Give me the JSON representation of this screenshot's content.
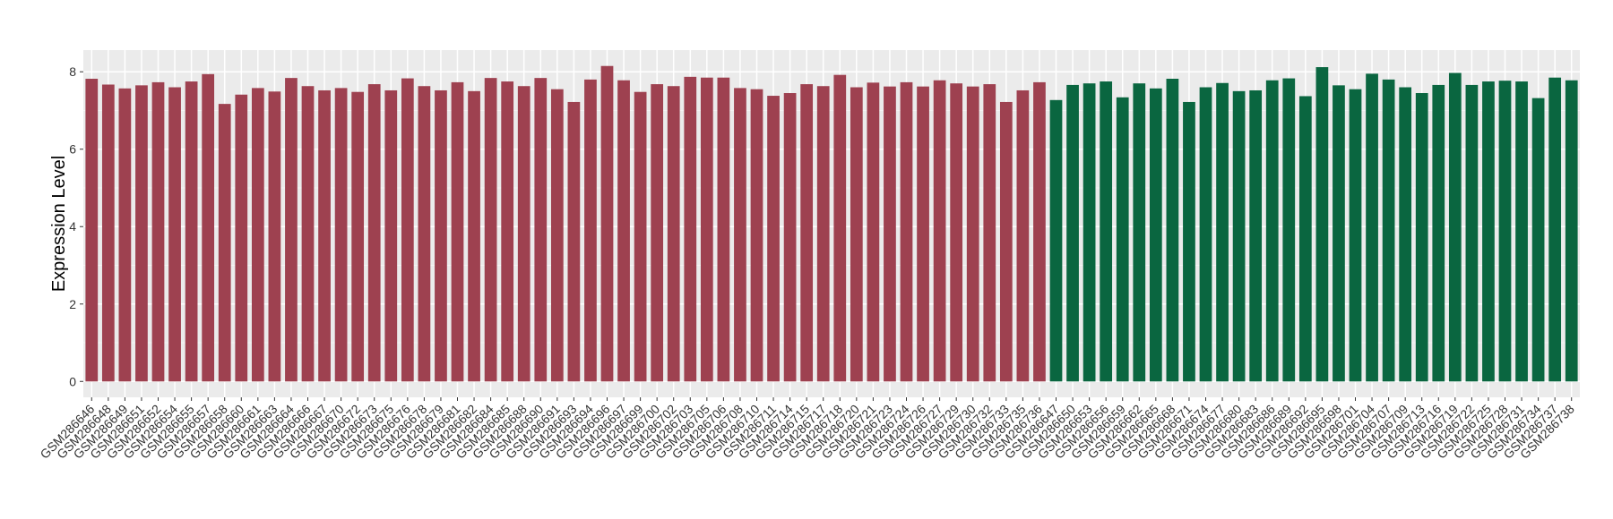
{
  "chart_data": {
    "type": "bar",
    "y_label": "Expression Level",
    "ylim": [
      -0.41,
      8.56
    ],
    "yticks": [
      0,
      2,
      4,
      6,
      8
    ],
    "grid": true,
    "groups": [
      {
        "color": "#9e4150",
        "categories": [
          "GSM286646",
          "GSM286648",
          "GSM286649",
          "GSM286651",
          "GSM286652",
          "GSM286654",
          "GSM286655",
          "GSM286657",
          "GSM286658",
          "GSM286660",
          "GSM286661",
          "GSM286663",
          "GSM286664",
          "GSM286666",
          "GSM286667",
          "GSM286670",
          "GSM286672",
          "GSM286673",
          "GSM286675",
          "GSM286676",
          "GSM286678",
          "GSM286679",
          "GSM286681",
          "GSM286682",
          "GSM286684",
          "GSM286685",
          "GSM286688",
          "GSM286690",
          "GSM286691",
          "GSM286693",
          "GSM286694",
          "GSM286696",
          "GSM286697",
          "GSM286699",
          "GSM286700",
          "GSM286702",
          "GSM286703",
          "GSM286705",
          "GSM286706",
          "GSM286708",
          "GSM286710",
          "GSM286711",
          "GSM286714",
          "GSM286715",
          "GSM286717",
          "GSM286718",
          "GSM286720",
          "GSM286721",
          "GSM286723",
          "GSM286724",
          "GSM286726",
          "GSM286727",
          "GSM286729",
          "GSM286730",
          "GSM286732",
          "GSM286733",
          "GSM286735",
          "GSM286736"
        ],
        "values": [
          7.82,
          7.67,
          7.57,
          7.65,
          7.73,
          7.6,
          7.75,
          7.94,
          7.17,
          7.41,
          7.58,
          7.49,
          7.84,
          7.63,
          7.52,
          7.58,
          7.48,
          7.68,
          7.52,
          7.83,
          7.63,
          7.52,
          7.73,
          7.5,
          7.84,
          7.75,
          7.63,
          7.84,
          7.55,
          7.22,
          7.8,
          8.15,
          7.78,
          7.48,
          7.68,
          7.63,
          7.87,
          7.85,
          7.85,
          7.58,
          7.55,
          7.38,
          7.45,
          7.68,
          7.63,
          7.92,
          7.6,
          7.72,
          7.62,
          7.73,
          7.62,
          7.78,
          7.7,
          7.62,
          7.68,
          7.22,
          7.52,
          7.73
        ]
      },
      {
        "color": "#0a6640",
        "categories": [
          "GSM286647",
          "GSM286650",
          "GSM286653",
          "GSM286656",
          "GSM286659",
          "GSM286662",
          "GSM286665",
          "GSM286668",
          "GSM286671",
          "GSM286674",
          "GSM286677",
          "GSM286680",
          "GSM286683",
          "GSM286686",
          "GSM286689",
          "GSM286692",
          "GSM286695",
          "GSM286698",
          "GSM286701",
          "GSM286704",
          "GSM286707",
          "GSM286709",
          "GSM286713",
          "GSM286716",
          "GSM286719",
          "GSM286722",
          "GSM286725",
          "GSM286728",
          "GSM286731",
          "GSM286734",
          "GSM286737",
          "GSM286738"
        ],
        "values": [
          7.27,
          7.66,
          7.7,
          7.75,
          7.34,
          7.7,
          7.57,
          7.82,
          7.22,
          7.6,
          7.71,
          7.5,
          7.52,
          7.78,
          7.83,
          7.37,
          8.12,
          7.65,
          7.55,
          7.95,
          7.8,
          7.6,
          7.45,
          7.66,
          7.97,
          7.66,
          7.75,
          7.77,
          7.75,
          7.32,
          7.85,
          7.78
        ]
      }
    ]
  }
}
